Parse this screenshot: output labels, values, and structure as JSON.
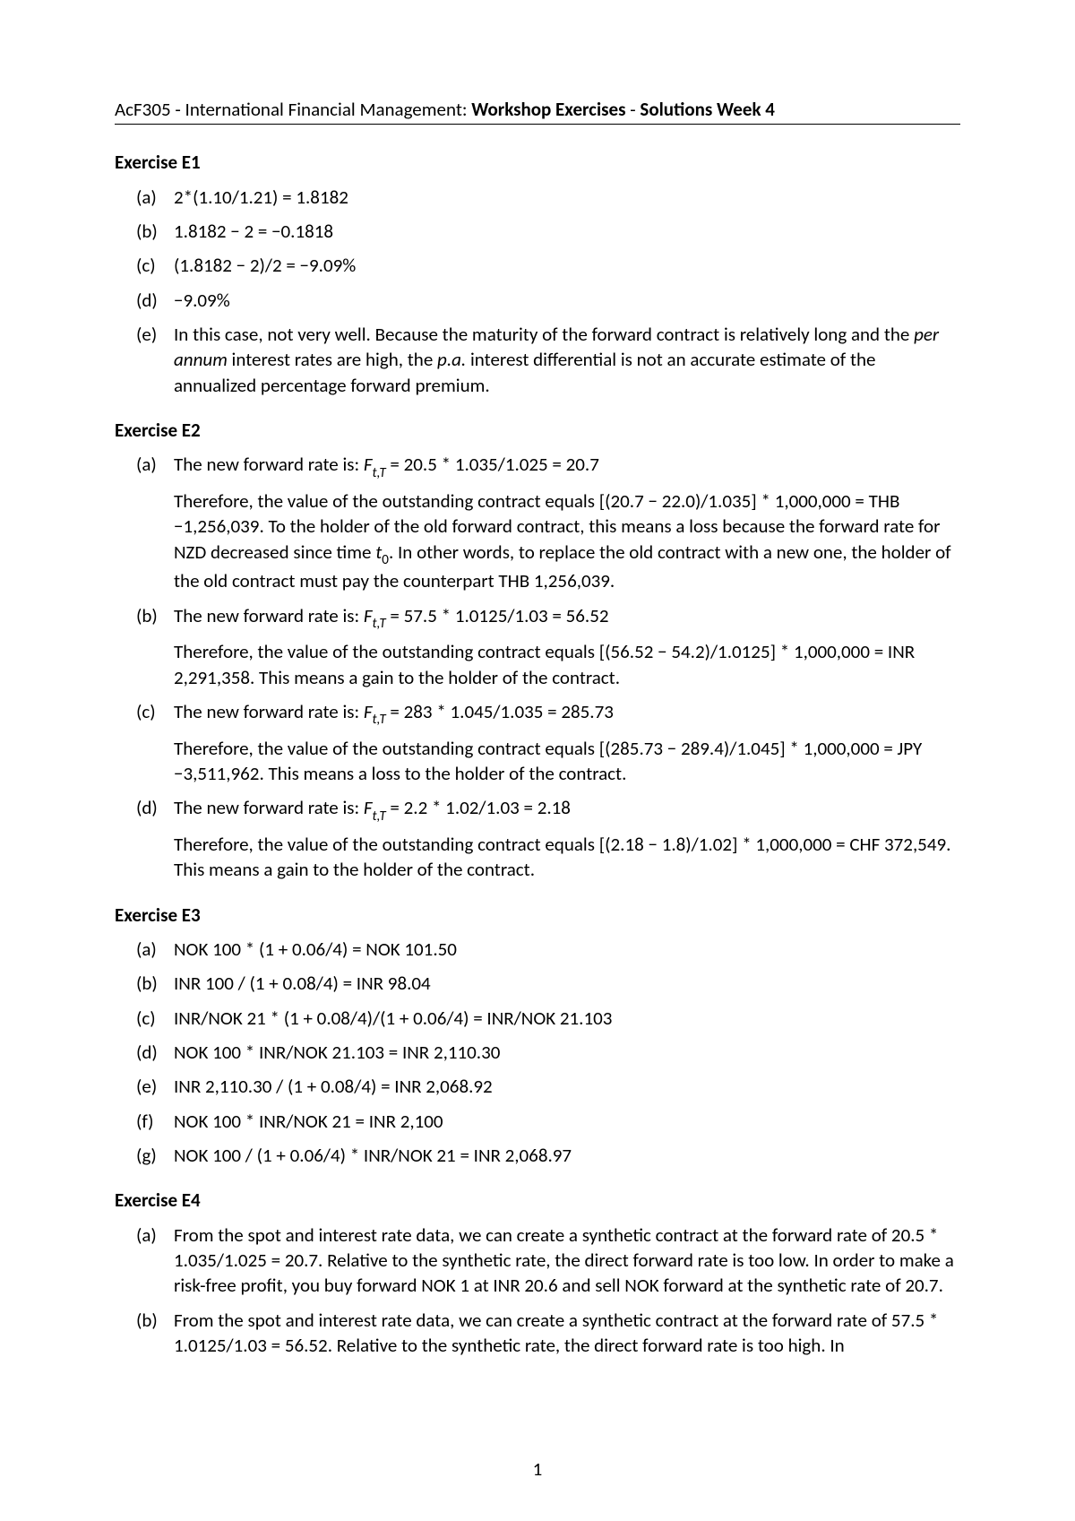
{
  "header": {
    "course": "AcF305 - International Financial Management: ",
    "subtitle1": "Workshop Exercises",
    "dash": " - ",
    "subtitle2": "Solutions Week 4"
  },
  "e1": {
    "title": "Exercise E1",
    "a": "2*(1.10/1.21) = 1.8182",
    "b": "1.8182 − 2 = −0.1818",
    "c": "(1.8182 − 2)/2 = −9.09%",
    "d": "−9.09%",
    "e_pre": "In this case, not very well. Because the maturity of the forward contract is relatively long and the ",
    "e_it1": "per annum",
    "e_mid": " interest rates are high, the ",
    "e_it2": "p.a.",
    "e_post": " interest differential is not an accurate estimate of the annualized percentage forward premium."
  },
  "e2": {
    "title": "Exercise E2",
    "a_pre": "The new forward rate is:  ",
    "a_sym": "F",
    "a_sub": "t,T",
    "a_post": " = 20.5 * 1.035/1.025 = 20.7",
    "a_p_pre": "Therefore, the value of the outstanding contract equals [(20.7 − 22.0)/1.035] * 1,000,000 = THB −1,256,039. To the holder of the old forward contract, this means a loss because the forward rate for NZD decreased since time ",
    "a_p_it": "t",
    "a_p_sub": "0",
    "a_p_post": ". In other words, to replace the old contract with a new one, the holder of the old contract must pay the counterpart THB 1,256,039.",
    "b_pre": "The new forward rate is:  ",
    "b_post": " = 57.5 * 1.0125/1.03 = 56.52",
    "b_p": "Therefore, the value of the outstanding contract equals [(56.52 − 54.2)/1.0125] * 1,000,000 = INR 2,291,358. This means a gain to the holder of the contract.",
    "c_pre": "The new forward rate is:  ",
    "c_post": " = 283 * 1.045/1.035 = 285.73",
    "c_p": "Therefore, the value of the outstanding contract equals [(285.73 − 289.4)/1.045] * 1,000,000 = JPY −3,511,962. This means a loss to the holder of the contract.",
    "d_pre": "The new forward rate is:  ",
    "d_post": " = 2.2 * 1.02/1.03 = 2.18",
    "d_p": "Therefore, the value of the outstanding contract equals [(2.18 − 1.8)/1.02] * 1,000,000 = CHF 372,549. This means a gain to the holder of the contract."
  },
  "e3": {
    "title": "Exercise E3",
    "a": "NOK 100 * (1 + 0.06/4) = NOK 101.50",
    "b": "INR 100 / (1 + 0.08/4) = INR 98.04",
    "c": "INR/NOK 21 * (1 + 0.08/4)/(1 + 0.06/4) = INR/NOK 21.103",
    "d": "NOK 100 * INR/NOK 21.103 = INR 2,110.30",
    "e": "INR 2,110.30 / (1 + 0.08/4) = INR 2,068.92",
    "f": "NOK 100 * INR/NOK 21 = INR 2,100",
    "g": "NOK 100 / (1 + 0.06/4) * INR/NOK 21 = INR 2,068.97"
  },
  "e4": {
    "title": "Exercise E4",
    "a": "From the spot and interest rate data, we can create a synthetic contract at the forward rate of 20.5 * 1.035/1.025 = 20.7. Relative to the synthetic rate, the direct forward rate is too low. In order to make a risk-free profit, you buy forward NOK 1 at INR 20.6 and sell NOK forward at the synthetic rate of 20.7.",
    "b": "From the spot and interest rate data, we can create a synthetic contract at the forward rate of 57.5 * 1.0125/1.03 = 56.52. Relative to the synthetic rate, the direct forward rate is too high. In"
  },
  "labels": {
    "a": "(a)",
    "b": "(b)",
    "c": "(c)",
    "d": "(d)",
    "e": "(e)",
    "f": "(f)",
    "g": "(g)"
  },
  "page_number": "1"
}
